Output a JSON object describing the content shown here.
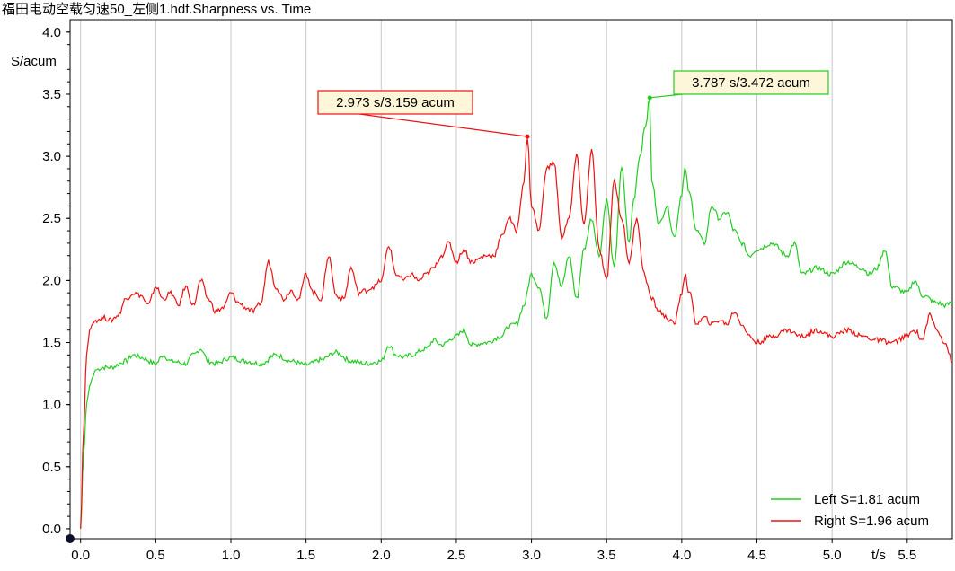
{
  "chart_data": {
    "type": "line",
    "title": "福田电动空载匀速50_左侧1.hdf.Sharpness vs. Time",
    "xlabel": "t/s",
    "ylabel": "S/acum",
    "xlim": [
      -0.07,
      5.8
    ],
    "ylim": [
      -0.08,
      4.1
    ],
    "x_ticks": [
      "0.0",
      "0.5",
      "1.0",
      "1.5",
      "2.0",
      "2.5",
      "3.0",
      "3.5",
      "4.0",
      "4.5",
      "5.0",
      "5.5"
    ],
    "y_ticks": [
      "0.0",
      "0.5",
      "1.0",
      "1.5",
      "2.0",
      "2.5",
      "3.0",
      "3.5",
      "4.0"
    ],
    "grid": "vertical",
    "legend_position": "bottom-right",
    "series": [
      {
        "name": "Left S=1.81 acum",
        "color": "#22cc22",
        "x": [
          0.0,
          0.02,
          0.04,
          0.06,
          0.08,
          0.1,
          0.15,
          0.2,
          0.3,
          0.35,
          0.4,
          0.5,
          0.55,
          0.6,
          0.7,
          0.75,
          0.8,
          0.85,
          0.9,
          1.0,
          1.1,
          1.2,
          1.3,
          1.4,
          1.5,
          1.6,
          1.7,
          1.8,
          1.9,
          2.0,
          2.05,
          2.1,
          2.15,
          2.2,
          2.3,
          2.35,
          2.4,
          2.5,
          2.55,
          2.6,
          2.7,
          2.8,
          2.85,
          2.9,
          2.95,
          3.0,
          3.05,
          3.1,
          3.15,
          3.2,
          3.25,
          3.3,
          3.35,
          3.4,
          3.45,
          3.5,
          3.55,
          3.6,
          3.65,
          3.68,
          3.72,
          3.76,
          3.787,
          3.8,
          3.85,
          3.9,
          3.95,
          4.0,
          4.02,
          4.05,
          4.1,
          4.15,
          4.2,
          4.25,
          4.3,
          4.35,
          4.4,
          4.45,
          4.5,
          4.6,
          4.7,
          4.75,
          4.8,
          4.9,
          5.0,
          5.1,
          5.2,
          5.25,
          5.3,
          5.35,
          5.4,
          5.5,
          5.55,
          5.6,
          5.7,
          5.75,
          5.8
        ],
        "y": [
          0.0,
          0.6,
          1.0,
          1.15,
          1.22,
          1.28,
          1.3,
          1.3,
          1.35,
          1.4,
          1.38,
          1.33,
          1.4,
          1.35,
          1.33,
          1.4,
          1.45,
          1.35,
          1.33,
          1.38,
          1.35,
          1.33,
          1.4,
          1.35,
          1.32,
          1.36,
          1.42,
          1.35,
          1.33,
          1.35,
          1.48,
          1.4,
          1.38,
          1.4,
          1.45,
          1.52,
          1.48,
          1.55,
          1.6,
          1.48,
          1.5,
          1.55,
          1.63,
          1.65,
          1.8,
          2.05,
          1.95,
          1.7,
          2.15,
          1.95,
          2.2,
          1.85,
          2.25,
          2.5,
          2.2,
          2.65,
          2.1,
          2.9,
          2.3,
          2.65,
          3.0,
          3.25,
          3.472,
          2.8,
          2.45,
          2.6,
          2.35,
          2.7,
          2.9,
          2.7,
          2.4,
          2.3,
          2.6,
          2.5,
          2.55,
          2.4,
          2.3,
          2.2,
          2.25,
          2.3,
          2.2,
          2.3,
          2.05,
          2.1,
          2.05,
          2.15,
          2.1,
          2.05,
          2.1,
          2.25,
          1.95,
          1.9,
          2.0,
          1.88,
          1.82,
          1.8,
          1.82
        ]
      },
      {
        "name": "Right S=1.96 acum",
        "color": "#ee1111",
        "x": [
          0.0,
          0.02,
          0.04,
          0.06,
          0.08,
          0.1,
          0.15,
          0.2,
          0.25,
          0.3,
          0.35,
          0.4,
          0.45,
          0.5,
          0.55,
          0.6,
          0.65,
          0.7,
          0.75,
          0.8,
          0.85,
          0.9,
          0.95,
          1.0,
          1.05,
          1.1,
          1.15,
          1.2,
          1.25,
          1.3,
          1.35,
          1.4,
          1.45,
          1.5,
          1.55,
          1.6,
          1.65,
          1.7,
          1.75,
          1.8,
          1.85,
          1.9,
          1.95,
          2.0,
          2.05,
          2.1,
          2.15,
          2.2,
          2.25,
          2.3,
          2.35,
          2.4,
          2.45,
          2.5,
          2.55,
          2.6,
          2.7,
          2.75,
          2.8,
          2.85,
          2.9,
          2.95,
          2.973,
          3.0,
          3.05,
          3.1,
          3.15,
          3.2,
          3.25,
          3.3,
          3.35,
          3.4,
          3.45,
          3.5,
          3.55,
          3.6,
          3.65,
          3.7,
          3.75,
          3.8,
          3.85,
          3.9,
          3.95,
          4.0,
          4.02,
          4.05,
          4.1,
          4.15,
          4.2,
          4.25,
          4.3,
          4.35,
          4.4,
          4.45,
          4.5,
          4.6,
          4.7,
          4.8,
          4.9,
          5.0,
          5.1,
          5.2,
          5.3,
          5.4,
          5.5,
          5.55,
          5.6,
          5.65,
          5.7,
          5.75,
          5.8
        ],
        "y": [
          0.0,
          0.8,
          1.4,
          1.6,
          1.65,
          1.68,
          1.7,
          1.68,
          1.72,
          1.85,
          1.9,
          1.88,
          1.8,
          1.95,
          1.85,
          1.9,
          1.8,
          1.95,
          1.8,
          2.0,
          1.85,
          1.75,
          1.78,
          1.9,
          1.82,
          1.78,
          1.75,
          1.82,
          2.15,
          1.95,
          1.85,
          1.92,
          1.85,
          2.05,
          1.9,
          1.85,
          2.2,
          1.88,
          1.85,
          2.1,
          1.9,
          1.92,
          1.95,
          2.0,
          2.28,
          2.05,
          2.0,
          2.05,
          2.0,
          2.05,
          2.1,
          2.2,
          2.3,
          2.15,
          2.25,
          2.15,
          2.2,
          2.2,
          2.35,
          2.5,
          2.4,
          2.8,
          3.159,
          2.6,
          2.4,
          2.9,
          2.95,
          2.35,
          2.5,
          3.0,
          2.45,
          3.05,
          2.25,
          2.0,
          2.8,
          2.5,
          2.15,
          2.5,
          2.05,
          1.85,
          1.75,
          1.7,
          1.65,
          1.9,
          2.05,
          1.9,
          1.65,
          1.7,
          1.65,
          1.68,
          1.65,
          1.75,
          1.65,
          1.55,
          1.5,
          1.55,
          1.6,
          1.55,
          1.6,
          1.55,
          1.6,
          1.55,
          1.52,
          1.5,
          1.55,
          1.6,
          1.52,
          1.72,
          1.6,
          1.5,
          1.35
        ]
      }
    ],
    "annotations": [
      {
        "text": "2.973 s/3.159 acum",
        "x": 2.973,
        "y": 3.159,
        "series": 1
      },
      {
        "text": "3.787 s/3.472 acum",
        "x": 3.787,
        "y": 3.472,
        "series": 0
      }
    ]
  },
  "styles": {
    "grid_color": "#c8c8c8",
    "frame_color": "#000000",
    "red_callout_bg": "#fdf6d8",
    "green_callout_bg": "#fdf6d8"
  }
}
